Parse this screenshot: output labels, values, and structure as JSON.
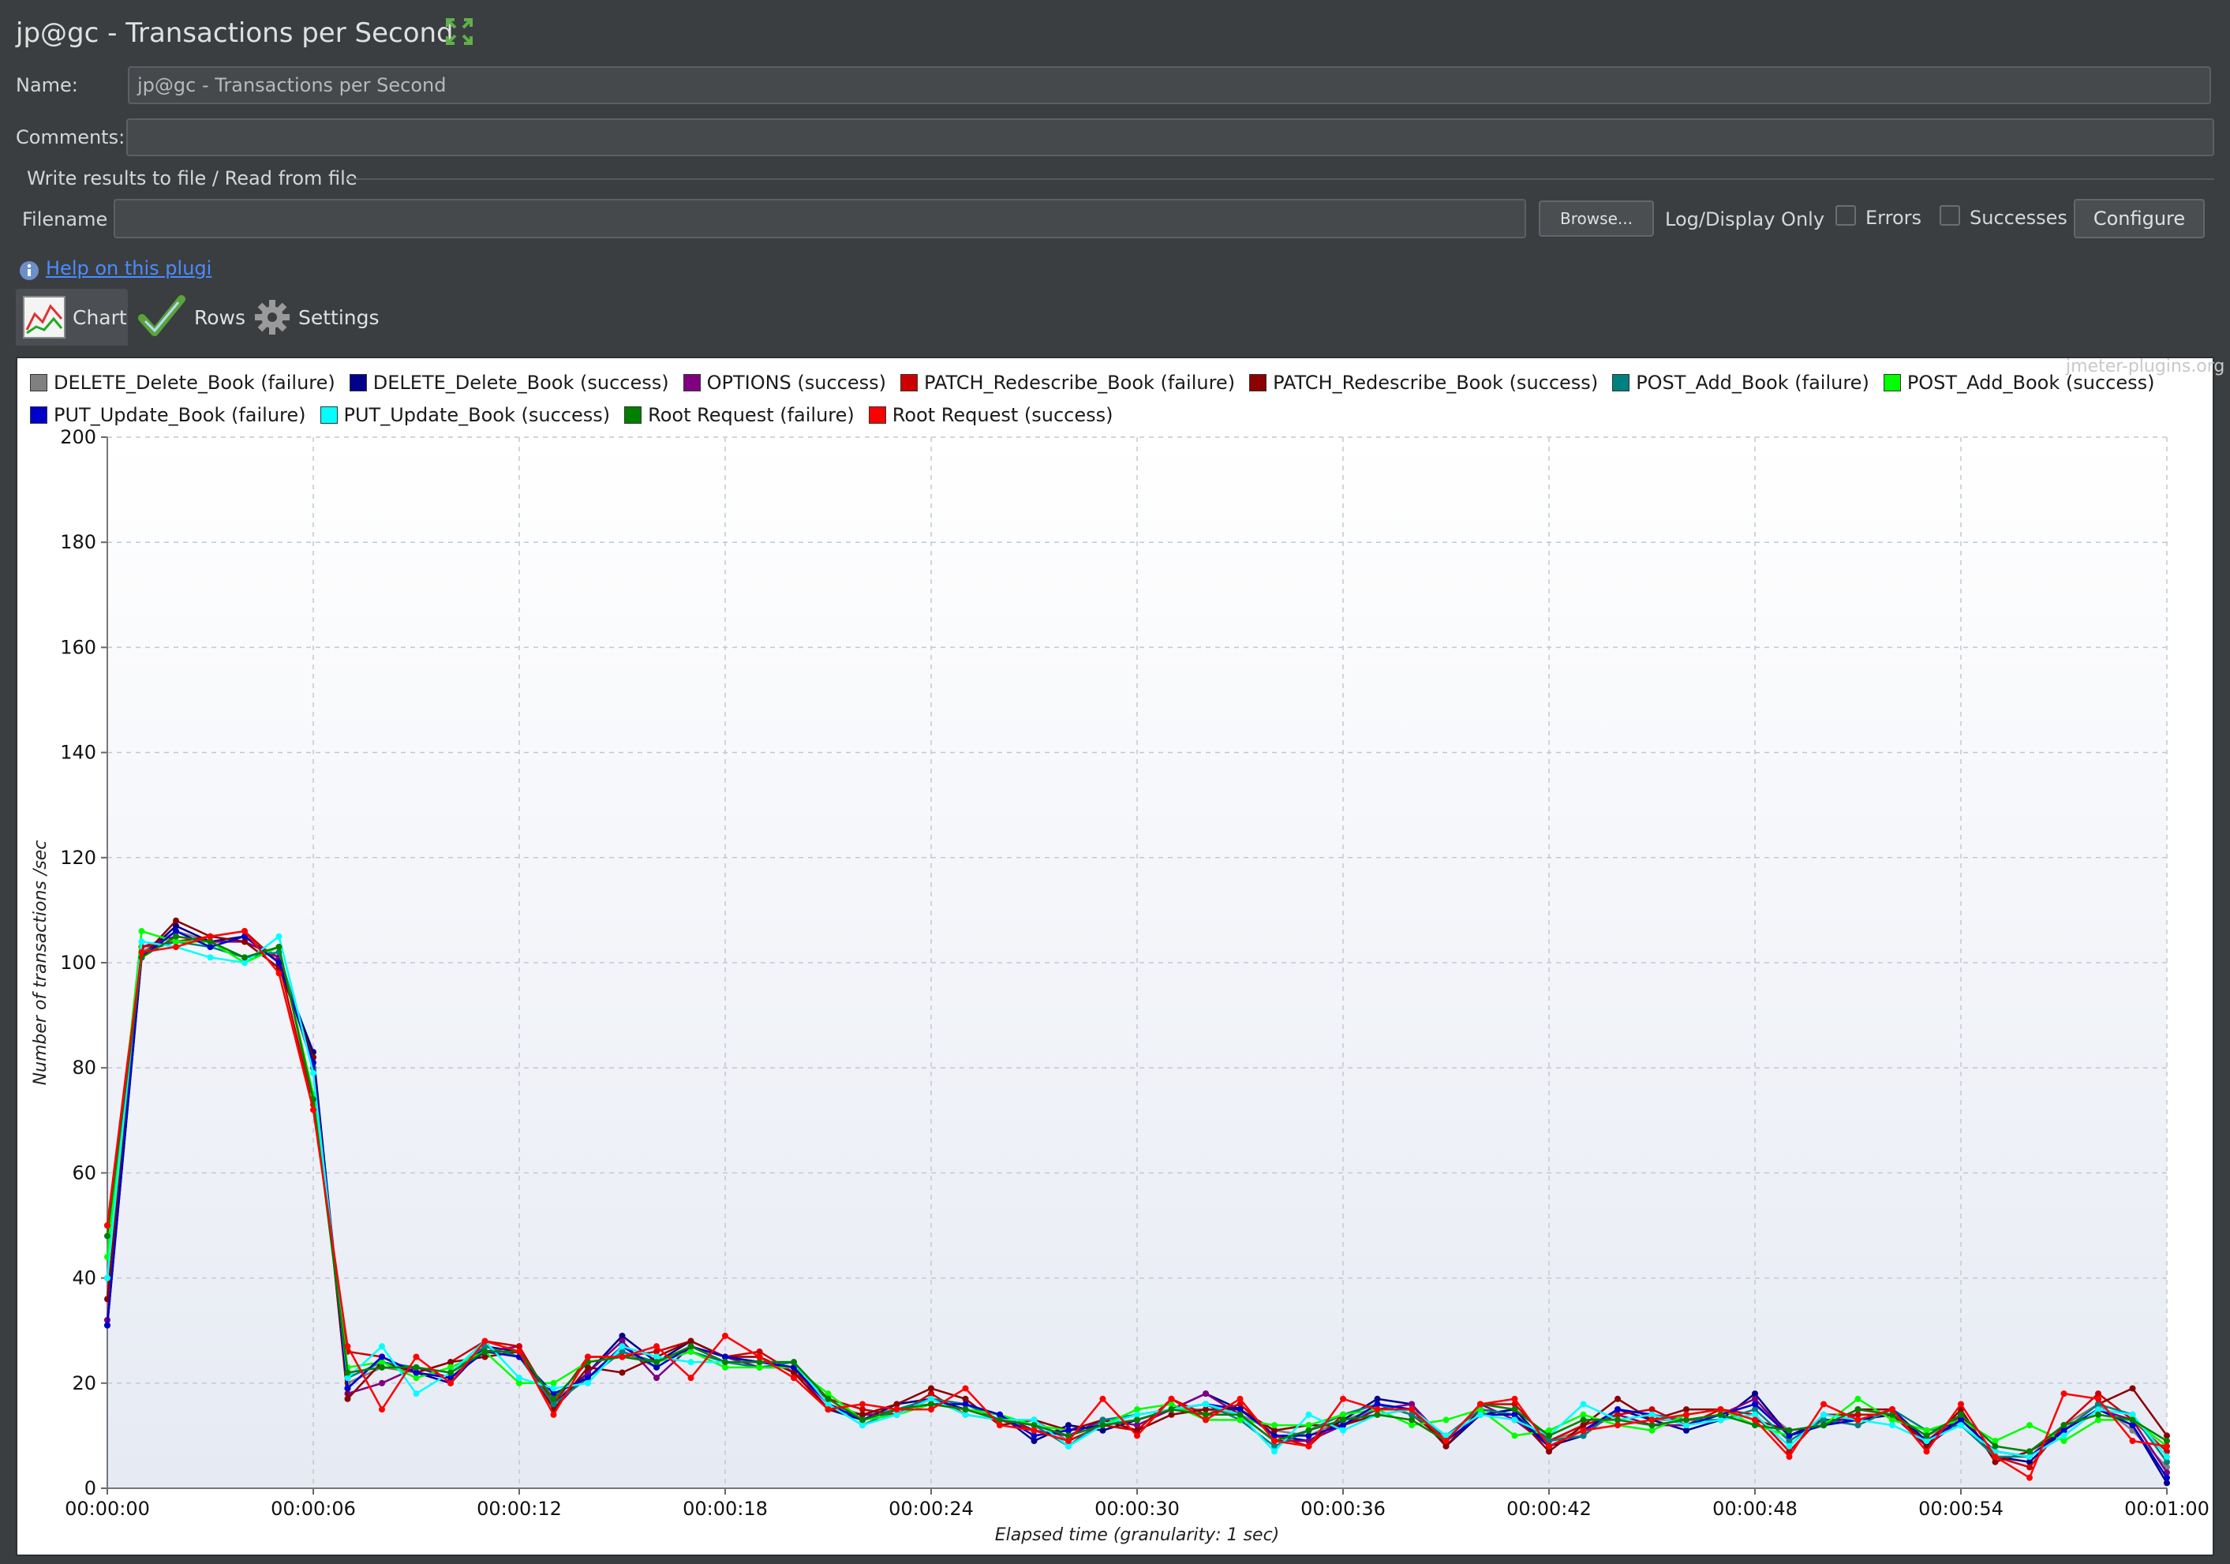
{
  "header": {
    "title": "jp@gc - Transactions per Second",
    "expand_icon": "expand-icon"
  },
  "form": {
    "name_label": "Name:",
    "name_value": "jp@gc - Transactions per Second",
    "comments_label": "Comments:",
    "comments_value": "",
    "file_group_label": "Write results to file / Read from file",
    "filename_label": "Filename",
    "filename_value": "",
    "browse_label": "Browse...",
    "log_display_label": "Log/Display Only",
    "errors_label": "Errors",
    "successes_label": "Successes",
    "configure_label": "Configure",
    "help_link": "Help on this plugi"
  },
  "tabs": [
    {
      "label": "Chart",
      "icon": "chart-icon"
    },
    {
      "label": "Rows",
      "icon": "checkmark-icon"
    },
    {
      "label": "Settings",
      "icon": "gear-icon"
    }
  ],
  "watermark": "jmeter-plugins.org",
  "chart_data": {
    "type": "line",
    "xlabel": "Elapsed time (granularity: 1 sec)",
    "ylabel": "Number of transactions /sec",
    "ylim": [
      0,
      200
    ],
    "yticks": [
      0,
      20,
      40,
      60,
      80,
      100,
      120,
      140,
      160,
      180,
      200
    ],
    "xlim": [
      0,
      60
    ],
    "xticks": [
      "00:00:00",
      "00:00:06",
      "00:00:12",
      "00:00:18",
      "00:00:24",
      "00:00:30",
      "00:00:36",
      "00:00:42",
      "00:00:48",
      "00:00:54",
      "00:01:00"
    ],
    "grid": true,
    "legend_position": "top",
    "series": [
      {
        "name": "DELETE_Delete_Book (failure)",
        "color": "#808080",
        "values": [
          32,
          102,
          106,
          104,
          105,
          101,
          82,
          20,
          23,
          22,
          21,
          27,
          25,
          17,
          21,
          26,
          23,
          27,
          24,
          24,
          24,
          16,
          14,
          15,
          16,
          15,
          13,
          13,
          9,
          12,
          13,
          15,
          15,
          14,
          11,
          10,
          13,
          15,
          15,
          10,
          15,
          14,
          9,
          11,
          15,
          13,
          13,
          14,
          16,
          11,
          12,
          13,
          14,
          10,
          13,
          7,
          6,
          12,
          16,
          11,
          4
        ]
      },
      {
        "name": "DELETE_Delete_Book (success)",
        "color": "#00008b",
        "values": [
          31,
          101,
          107,
          104,
          105,
          100,
          83,
          19,
          25,
          22,
          20,
          27,
          26,
          16,
          22,
          29,
          24,
          28,
          25,
          24,
          23,
          15,
          13,
          16,
          17,
          15,
          14,
          9,
          12,
          11,
          13,
          15,
          18,
          15,
          10,
          9,
          13,
          17,
          16,
          8,
          14,
          15,
          8,
          10,
          15,
          13,
          11,
          13,
          18,
          10,
          13,
          13,
          14,
          8,
          14,
          6,
          5,
          11,
          15,
          12,
          1
        ]
      },
      {
        "name": "OPTIONS (success)",
        "color": "#800080",
        "values": [
          32,
          103,
          105,
          104,
          104,
          101,
          80,
          18,
          20,
          23,
          21,
          26,
          27,
          15,
          22,
          28,
          21,
          27,
          25,
          23,
          23,
          15,
          14,
          14,
          17,
          16,
          14,
          11,
          10,
          13,
          12,
          15,
          18,
          14,
          9,
          9,
          12,
          15,
          16,
          9,
          16,
          13,
          8,
          11,
          14,
          12,
          12,
          14,
          17,
          10,
          12,
          14,
          14,
          8,
          13,
          7,
          6,
          10,
          15,
          13,
          3
        ]
      },
      {
        "name": "PATCH_Redescribe_Book (failure)",
        "color": "#cc0000",
        "values": [
          50,
          103,
          104,
          105,
          106,
          100,
          73,
          26,
          25,
          22,
          24,
          28,
          27,
          16,
          25,
          25,
          26,
          28,
          25,
          26,
          22,
          17,
          15,
          14,
          18,
          14,
          13,
          11,
          9,
          12,
          11,
          17,
          14,
          16,
          10,
          8,
          14,
          16,
          14,
          9,
          16,
          16,
          9,
          12,
          14,
          15,
          12,
          15,
          14,
          7,
          14,
          14,
          14,
          9,
          14,
          6,
          4,
          12,
          18,
          13,
          7
        ]
      },
      {
        "name": "PATCH_Redescribe_Book (success)",
        "color": "#8b0000",
        "values": [
          36,
          101,
          108,
          105,
          104,
          99,
          82,
          17,
          24,
          22,
          24,
          25,
          26,
          15,
          23,
          22,
          25,
          28,
          25,
          25,
          22,
          15,
          14,
          16,
          19,
          17,
          12,
          13,
          11,
          13,
          11,
          14,
          15,
          15,
          11,
          12,
          12,
          14,
          15,
          8,
          15,
          14,
          7,
          12,
          17,
          13,
          15,
          15,
          13,
          11,
          12,
          15,
          15,
          8,
          15,
          5,
          7,
          11,
          16,
          19,
          10
        ]
      },
      {
        "name": "POST_Add_Book (failure)",
        "color": "#008080",
        "values": [
          40,
          102,
          104,
          103,
          101,
          102,
          80,
          21,
          24,
          23,
          22,
          27,
          25,
          16,
          21,
          26,
          24,
          26,
          24,
          23,
          24,
          16,
          12,
          15,
          17,
          16,
          13,
          12,
          8,
          13,
          14,
          15,
          16,
          13,
          8,
          11,
          14,
          16,
          14,
          10,
          15,
          14,
          9,
          10,
          15,
          14,
          13,
          13,
          15,
          9,
          13,
          12,
          15,
          11,
          12,
          6,
          6,
          11,
          16,
          14,
          5
        ]
      },
      {
        "name": "POST_Add_Book (success)",
        "color": "#00ff00",
        "values": [
          44,
          106,
          104,
          104,
          100,
          103,
          75,
          23,
          24,
          21,
          23,
          26,
          20,
          20,
          24,
          25,
          24,
          26,
          23,
          23,
          23,
          18,
          13,
          14,
          16,
          15,
          14,
          12,
          11,
          12,
          15,
          16,
          13,
          13,
          12,
          12,
          14,
          15,
          12,
          13,
          15,
          10,
          11,
          14,
          12,
          11,
          14,
          15,
          12,
          10,
          12,
          17,
          13,
          11,
          13,
          9,
          12,
          9,
          13,
          13,
          8
        ]
      },
      {
        "name": "PUT_Update_Book (failure)",
        "color": "#0000cd",
        "values": [
          31,
          101,
          106,
          103,
          105,
          100,
          81,
          19,
          25,
          22,
          21,
          26,
          25,
          18,
          21,
          27,
          23,
          27,
          25,
          24,
          23,
          16,
          13,
          15,
          16,
          16,
          14,
          10,
          11,
          12,
          13,
          15,
          16,
          15,
          10,
          10,
          12,
          16,
          15,
          9,
          14,
          14,
          8,
          11,
          15,
          14,
          12,
          14,
          16,
          10,
          12,
          13,
          15,
          9,
          13,
          7,
          6,
          11,
          15,
          12,
          2
        ]
      },
      {
        "name": "PUT_Update_Book (success)",
        "color": "#00ffff",
        "values": [
          40,
          104,
          103,
          101,
          100,
          105,
          79,
          21,
          27,
          18,
          22,
          28,
          21,
          19,
          20,
          27,
          25,
          24,
          24,
          24,
          24,
          16,
          12,
          14,
          17,
          14,
          13,
          13,
          8,
          12,
          14,
          15,
          16,
          14,
          7,
          14,
          11,
          14,
          15,
          10,
          14,
          13,
          10,
          16,
          13,
          14,
          12,
          13,
          14,
          8,
          14,
          13,
          12,
          9,
          12,
          7,
          6,
          10,
          15,
          14,
          6
        ]
      },
      {
        "name": "Root Request (failure)",
        "color": "#008000",
        "values": [
          48,
          101,
          105,
          104,
          101,
          103,
          74,
          22,
          23,
          23,
          22,
          26,
          26,
          17,
          24,
          25,
          24,
          27,
          24,
          24,
          24,
          17,
          13,
          15,
          16,
          15,
          13,
          12,
          10,
          12,
          13,
          15,
          14,
          14,
          9,
          11,
          13,
          14,
          13,
          9,
          16,
          15,
          10,
          13,
          13,
          12,
          13,
          14,
          12,
          11,
          12,
          15,
          14,
          10,
          14,
          8,
          7,
          12,
          14,
          13,
          9
        ]
      },
      {
        "name": "Root Request (success)",
        "color": "#ff0000",
        "values": [
          50,
          102,
          103,
          105,
          106,
          98,
          72,
          27,
          15,
          25,
          20,
          28,
          26,
          14,
          25,
          25,
          27,
          21,
          29,
          25,
          21,
          15,
          16,
          15,
          15,
          19,
          12,
          11,
          9,
          17,
          10,
          17,
          13,
          17,
          9,
          8,
          17,
          15,
          15,
          9,
          16,
          17,
          8,
          11,
          12,
          13,
          14,
          15,
          13,
          6,
          16,
          13,
          15,
          7,
          16,
          6,
          2,
          18,
          17,
          9,
          8
        ]
      }
    ]
  }
}
